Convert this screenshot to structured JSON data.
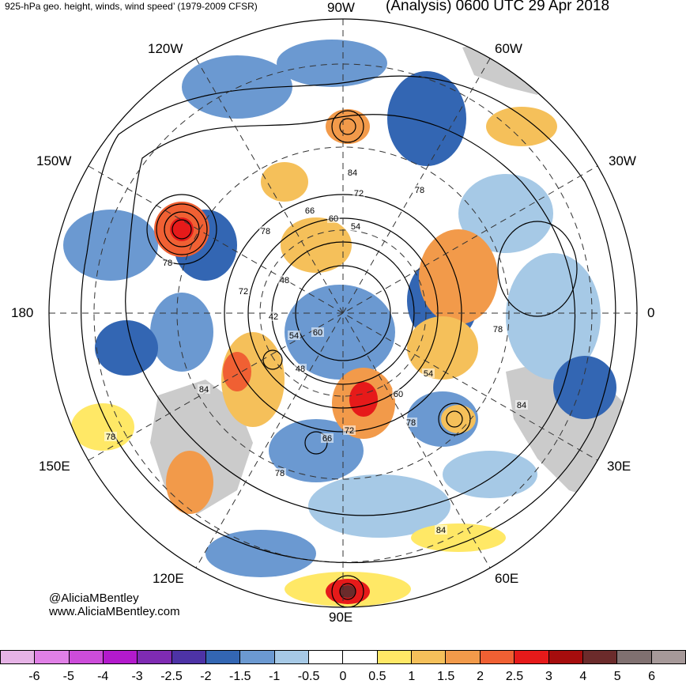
{
  "header": {
    "left_title": "925-hPa geo. height, winds, wind speed’ (1979-2009 CFSR)",
    "right_title": "(Analysis) 0600 UTC 29 Apr 2018"
  },
  "longitude_labels": {
    "top": "90W",
    "upper_left": "120W",
    "upper_right": "60W",
    "left_upper": "150W",
    "right_upper": "30W",
    "left": "180",
    "right": "0",
    "left_lower": "150E",
    "right_lower": "30E",
    "lower_left": "120E",
    "lower_right": "60E",
    "bottom": "90E"
  },
  "credit": {
    "handle": "@AliciaMBentley",
    "website": "www.AliciaMBentley.com"
  },
  "contour_labels": [
    "84",
    "72",
    "78",
    "66",
    "60",
    "54",
    "78",
    "78",
    "48",
    "72",
    "42",
    "54",
    "60",
    "78",
    "54",
    "48",
    "60",
    "84",
    "84",
    "78",
    "66",
    "72",
    "78",
    "78",
    "84"
  ],
  "colorbar": {
    "colors": [
      "#e6b3e6",
      "#e080e6",
      "#cc4cd9",
      "#b31acc",
      "#7f2bb3",
      "#4d33a6",
      "#3366b3",
      "#6b99d1",
      "#a6c9e6",
      "#ffffff",
      "#ffffff",
      "#ffe866",
      "#f5c05a",
      "#f29a4a",
      "#f06033",
      "#e61a1a",
      "#a60d0d",
      "#6b2b2b",
      "#807070",
      "#a69999"
    ],
    "ticks": [
      "-6",
      "-5",
      "-4",
      "-3",
      "-2.5",
      "-2",
      "-1.5",
      "-1",
      "-0.5",
      "0",
      "0.5",
      "1",
      "1.5",
      "2",
      "2.5",
      "3",
      "4",
      "5",
      "6"
    ]
  },
  "colors": {
    "land": "#c8c8c8",
    "positive": "#f0c050",
    "negative": "#3f74c0"
  }
}
